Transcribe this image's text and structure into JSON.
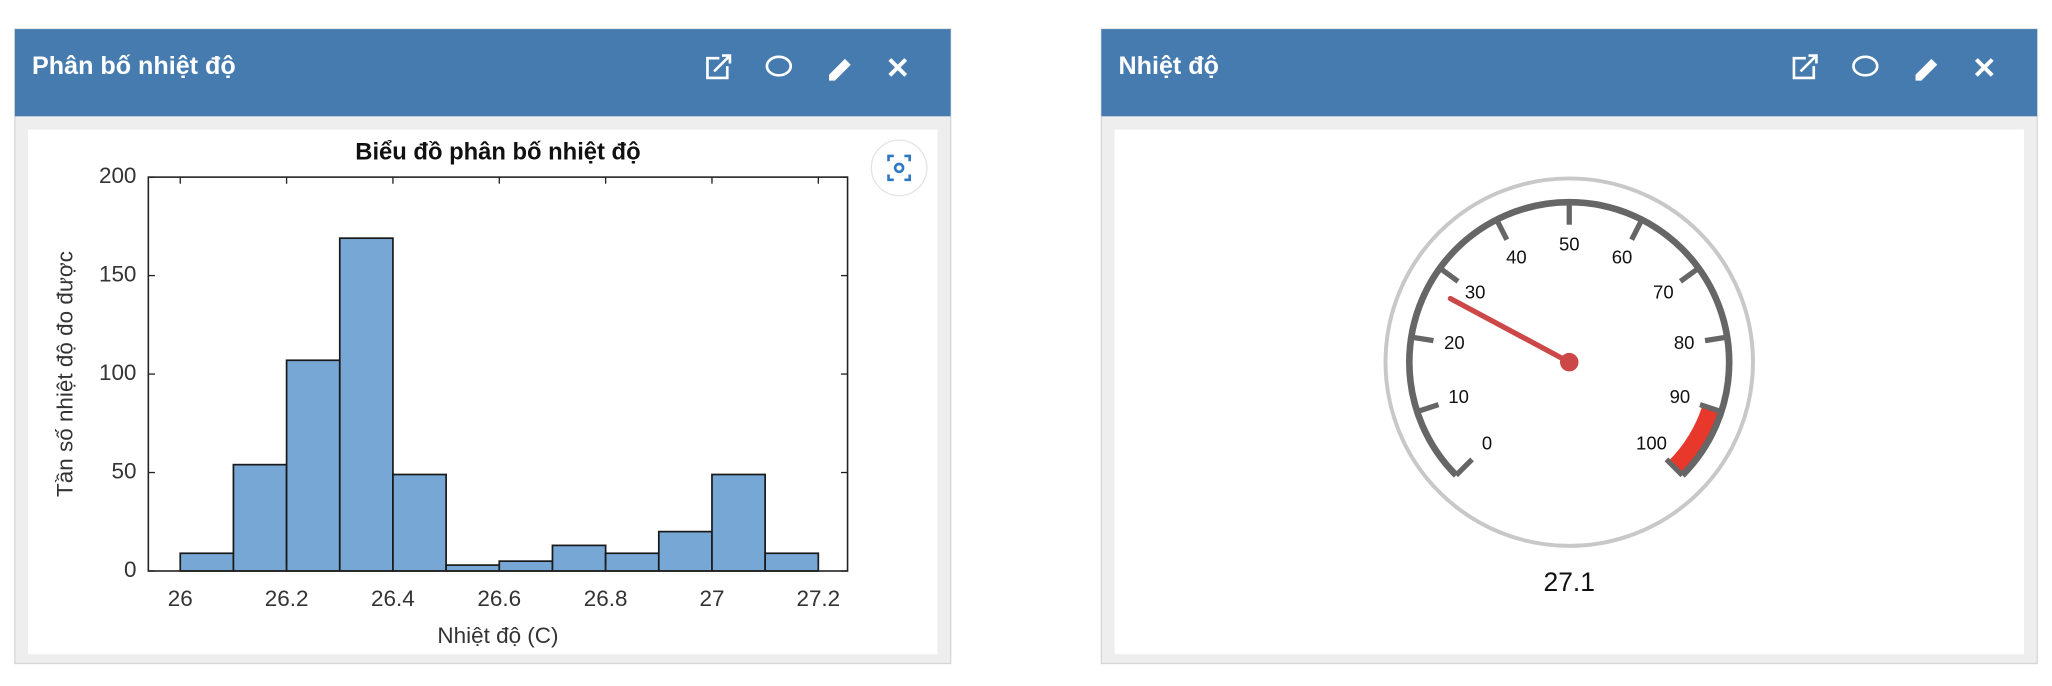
{
  "panels": [
    {
      "title": "Phân bố nhiệt độ"
    },
    {
      "title": "Nhiệt độ"
    }
  ],
  "chart_data": [
    {
      "type": "histogram",
      "title": "Biểu đồ phân bố nhiệt độ",
      "x_label": "Nhiệt độ (C)",
      "y_label": "Tần số nhiệt độ đo được",
      "bins": [
        26.0,
        26.1,
        26.2,
        26.3,
        26.4,
        26.5,
        26.6,
        26.7,
        26.8,
        26.9,
        27.0,
        27.1,
        27.2
      ],
      "values": [
        9,
        54,
        107,
        169,
        49,
        3,
        5,
        13,
        9,
        20,
        49,
        9
      ],
      "color": "#77a7d4",
      "xlim": [
        25.94,
        27.255
      ],
      "xticks": [
        26,
        26.2,
        26.4,
        26.6,
        26.8,
        27,
        27.2
      ],
      "ylim": [
        0,
        200
      ],
      "yticks": [
        0,
        50,
        100,
        150,
        200
      ]
    },
    {
      "type": "gauge",
      "value": 27.1,
      "min": 0,
      "max": 100,
      "ticks": [
        0,
        10,
        20,
        30,
        40,
        50,
        60,
        70,
        80,
        90,
        100
      ],
      "bands": [
        {
          "from": 90,
          "to": 100,
          "color": "#e8372b"
        }
      ],
      "needle_color": "#cc4848"
    }
  ]
}
